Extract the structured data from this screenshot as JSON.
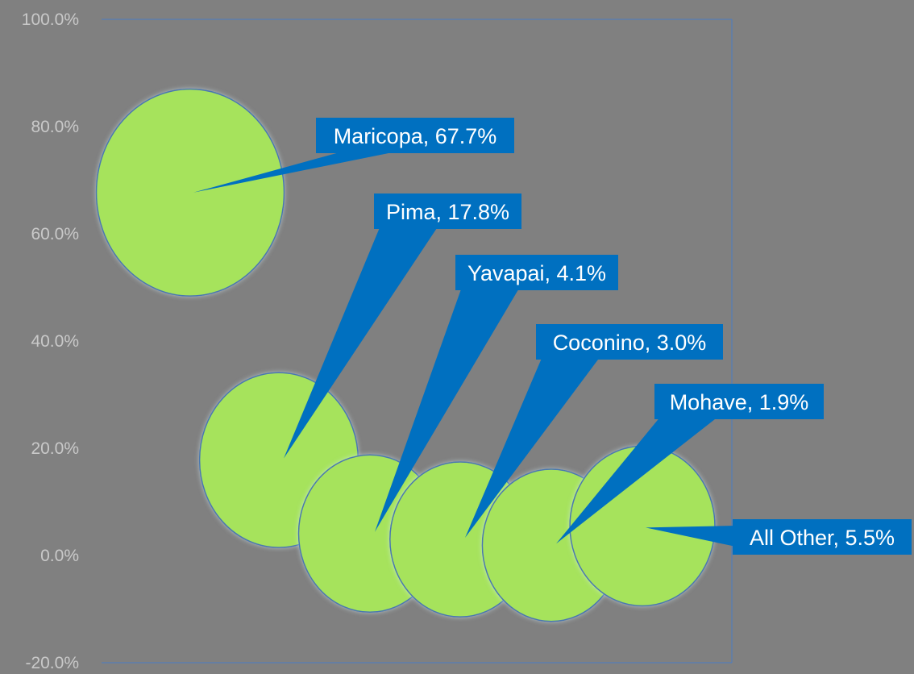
{
  "chart_data": {
    "type": "bubble",
    "title": "",
    "xlabel": "",
    "ylabel": "",
    "ylim": [
      -0.2,
      1.0
    ],
    "ytick_step": 0.2,
    "y_tick_labels": [
      "100.0%",
      "80.0%",
      "60.0%",
      "40.0%",
      "20.0%",
      "0.0%",
      "-20.0%"
    ],
    "grid": false,
    "legend": "none",
    "points": [
      {
        "name": "Maricopa",
        "value": 0.677,
        "label": "Maricopa, 67.7%"
      },
      {
        "name": "Pima",
        "value": 0.178,
        "label": "Pima, 17.8%"
      },
      {
        "name": "Yavapai",
        "value": 0.041,
        "label": "Yavapai, 4.1%"
      },
      {
        "name": "Coconino",
        "value": 0.03,
        "label": "Coconino, 3.0%"
      },
      {
        "name": "Mohave",
        "value": 0.019,
        "label": "Mohave, 1.9%"
      },
      {
        "name": "All Other",
        "value": 0.055,
        "label": "All Other, 5.5%"
      }
    ],
    "colors": {
      "background": "#808080",
      "bubble_fill": "#a6e35b",
      "bubble_stroke": "#4a78b0",
      "label_fill": "#0070c0",
      "label_text": "#ffffff",
      "axis_line": "#4a7dc4",
      "tick_text": "#c9c9c9"
    }
  }
}
